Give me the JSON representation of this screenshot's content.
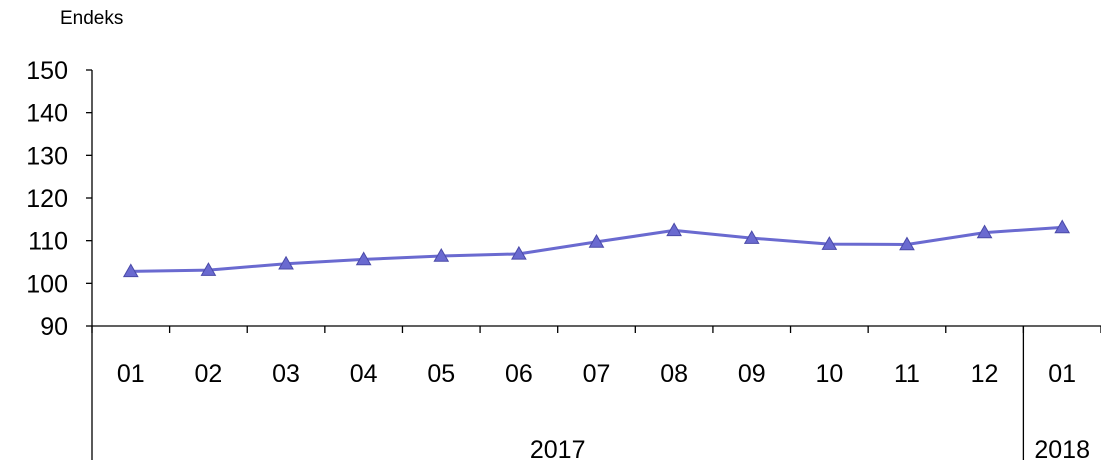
{
  "chart_data": {
    "type": "line",
    "ylabel": "Endeks",
    "ylim": [
      90,
      150
    ],
    "yticks": [
      90,
      100,
      110,
      120,
      130,
      140,
      150
    ],
    "categories": [
      "01",
      "02",
      "03",
      "04",
      "05",
      "06",
      "07",
      "08",
      "09",
      "10",
      "11",
      "12",
      "01"
    ],
    "year_groups": [
      {
        "label": "2017",
        "count": 12
      },
      {
        "label": "2018",
        "count": 1
      }
    ],
    "series": [
      {
        "values": [
          102.8,
          103.1,
          104.6,
          105.6,
          106.4,
          106.9,
          109.7,
          112.4,
          110.6,
          109.2,
          109.1,
          111.9,
          113.1
        ],
        "color": "#6a6ad0",
        "marker": "triangle"
      }
    ],
    "grid": false,
    "legend": "none"
  }
}
